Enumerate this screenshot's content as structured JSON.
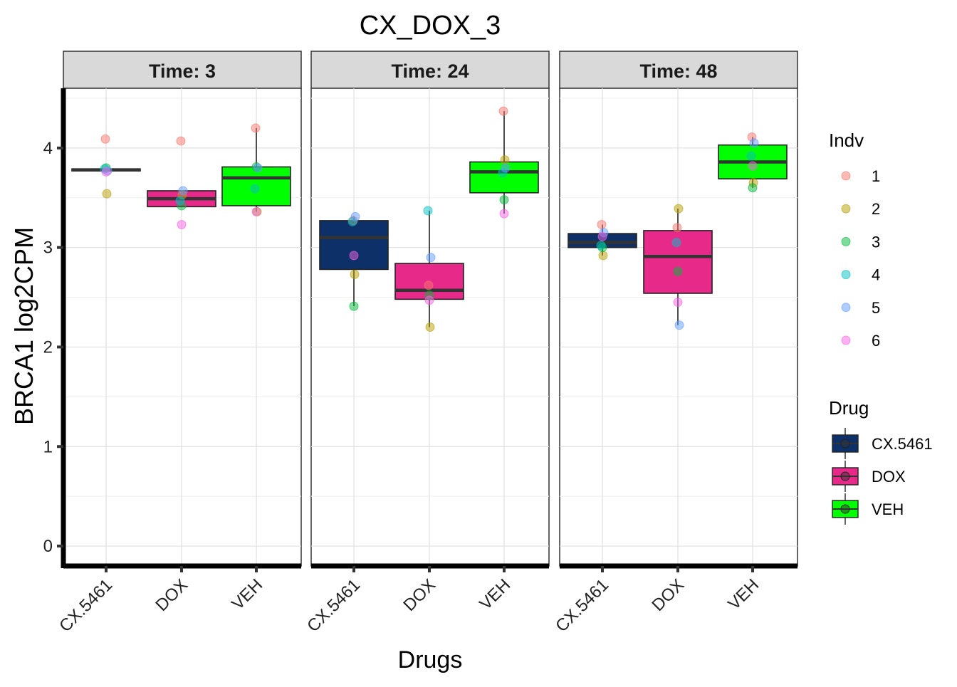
{
  "chart_data": {
    "type": "box",
    "title": "CX_DOX_3",
    "xlabel": "Drugs",
    "ylabel": "BRCA1  log2CPM",
    "ylim": [
      -0.2,
      4.6
    ],
    "yticks": [
      0,
      1,
      2,
      3,
      4
    ],
    "ytick_labels": [
      "0",
      "1",
      "2",
      "3",
      "4"
    ],
    "categories": [
      "CX.5461",
      "DOX",
      "VEH"
    ],
    "grid": true,
    "panels": [
      {
        "label": "Time: 3",
        "boxes": [
          {
            "drug": "CX.5461",
            "q1": 3.77,
            "median": 3.78,
            "q3": 3.79,
            "whisker_low": 3.77,
            "whisker_high": 3.79
          },
          {
            "drug": "DOX",
            "q1": 3.41,
            "median": 3.49,
            "q3": 3.57,
            "whisker_low": 3.41,
            "whisker_high": 3.57
          },
          {
            "drug": "VEH",
            "q1": 3.42,
            "median": 3.7,
            "q3": 3.81,
            "whisker_low": 3.36,
            "whisker_high": 4.2
          }
        ],
        "points": [
          {
            "drug": "CX.5461",
            "indv": "1",
            "y": 4.09
          },
          {
            "drug": "CX.5461",
            "indv": "2",
            "y": 3.54
          },
          {
            "drug": "CX.5461",
            "indv": "3",
            "y": 3.8
          },
          {
            "drug": "CX.5461",
            "indv": "4",
            "y": 3.79
          },
          {
            "drug": "CX.5461",
            "indv": "5",
            "y": 3.77
          },
          {
            "drug": "CX.5461",
            "indv": "6",
            "y": 3.76
          },
          {
            "drug": "DOX",
            "indv": "1",
            "y": 4.07
          },
          {
            "drug": "DOX",
            "indv": "2",
            "y": 3.53
          },
          {
            "drug": "DOX",
            "indv": "3",
            "y": 3.42
          },
          {
            "drug": "DOX",
            "indv": "4",
            "y": 3.47
          },
          {
            "drug": "DOX",
            "indv": "5",
            "y": 3.57
          },
          {
            "drug": "DOX",
            "indv": "6",
            "y": 3.23
          },
          {
            "drug": "VEH",
            "indv": "1",
            "y": 4.2
          },
          {
            "drug": "VEH",
            "indv": "2",
            "y": 3.36
          },
          {
            "drug": "VEH",
            "indv": "3",
            "y": 3.81
          },
          {
            "drug": "VEH",
            "indv": "4",
            "y": 3.59
          },
          {
            "drug": "VEH",
            "indv": "5",
            "y": 3.8
          },
          {
            "drug": "VEH",
            "indv": "6",
            "y": 3.36
          }
        ]
      },
      {
        "label": "Time: 24",
        "boxes": [
          {
            "drug": "CX.5461",
            "q1": 2.78,
            "median": 3.1,
            "q3": 3.27,
            "whisker_low": 2.41,
            "whisker_high": 3.31
          },
          {
            "drug": "DOX",
            "q1": 2.48,
            "median": 2.57,
            "q3": 2.84,
            "whisker_low": 2.2,
            "whisker_high": 3.37
          },
          {
            "drug": "VEH",
            "q1": 3.55,
            "median": 3.76,
            "q3": 3.86,
            "whisker_low": 3.34,
            "whisker_high": 4.37
          }
        ],
        "points": [
          {
            "drug": "CX.5461",
            "indv": "1",
            "y": 3.27
          },
          {
            "drug": "CX.5461",
            "indv": "2",
            "y": 2.73
          },
          {
            "drug": "CX.5461",
            "indv": "3",
            "y": 2.41
          },
          {
            "drug": "CX.5461",
            "indv": "4",
            "y": 3.26
          },
          {
            "drug": "CX.5461",
            "indv": "5",
            "y": 3.31
          },
          {
            "drug": "CX.5461",
            "indv": "6",
            "y": 2.92
          },
          {
            "drug": "DOX",
            "indv": "1",
            "y": 2.62
          },
          {
            "drug": "DOX",
            "indv": "2",
            "y": 2.2
          },
          {
            "drug": "DOX",
            "indv": "3",
            "y": 2.52
          },
          {
            "drug": "DOX",
            "indv": "4",
            "y": 3.37
          },
          {
            "drug": "DOX",
            "indv": "5",
            "y": 2.9
          },
          {
            "drug": "DOX",
            "indv": "6",
            "y": 2.47
          },
          {
            "drug": "VEH",
            "indv": "1",
            "y": 4.37
          },
          {
            "drug": "VEH",
            "indv": "2",
            "y": 3.88
          },
          {
            "drug": "VEH",
            "indv": "3",
            "y": 3.48
          },
          {
            "drug": "VEH",
            "indv": "4",
            "y": 3.75
          },
          {
            "drug": "VEH",
            "indv": "5",
            "y": 3.8
          },
          {
            "drug": "VEH",
            "indv": "6",
            "y": 3.34
          }
        ]
      },
      {
        "label": "Time: 48",
        "boxes": [
          {
            "drug": "CX.5461",
            "q1": 3.0,
            "median": 3.05,
            "q3": 3.14,
            "whisker_low": 2.92,
            "whisker_high": 3.23
          },
          {
            "drug": "DOX",
            "q1": 2.54,
            "median": 2.91,
            "q3": 3.17,
            "whisker_low": 2.22,
            "whisker_high": 3.39
          },
          {
            "drug": "VEH",
            "q1": 3.69,
            "median": 3.86,
            "q3": 4.03,
            "whisker_low": 3.6,
            "whisker_high": 4.11
          }
        ],
        "points": [
          {
            "drug": "CX.5461",
            "indv": "1",
            "y": 3.23
          },
          {
            "drug": "CX.5461",
            "indv": "2",
            "y": 2.92
          },
          {
            "drug": "CX.5461",
            "indv": "3",
            "y": 3.0
          },
          {
            "drug": "CX.5461",
            "indv": "4",
            "y": 3.02
          },
          {
            "drug": "CX.5461",
            "indv": "5",
            "y": 3.15
          },
          {
            "drug": "CX.5461",
            "indv": "6",
            "y": 3.11
          },
          {
            "drug": "DOX",
            "indv": "1",
            "y": 3.2
          },
          {
            "drug": "DOX",
            "indv": "2",
            "y": 3.39
          },
          {
            "drug": "DOX",
            "indv": "3",
            "y": 2.76
          },
          {
            "drug": "DOX",
            "indv": "4",
            "y": 3.05
          },
          {
            "drug": "DOX",
            "indv": "5",
            "y": 2.22
          },
          {
            "drug": "DOX",
            "indv": "6",
            "y": 2.45
          },
          {
            "drug": "VEH",
            "indv": "1",
            "y": 4.11
          },
          {
            "drug": "VEH",
            "indv": "2",
            "y": 3.65
          },
          {
            "drug": "VEH",
            "indv": "3",
            "y": 3.6
          },
          {
            "drug": "VEH",
            "indv": "4",
            "y": 3.92
          },
          {
            "drug": "VEH",
            "indv": "5",
            "y": 4.05
          },
          {
            "drug": "VEH",
            "indv": "6",
            "y": 3.82
          }
        ]
      }
    ],
    "legends": [
      {
        "title": "Indv",
        "items": [
          {
            "label": "1",
            "color": "#F8766D"
          },
          {
            "label": "2",
            "color": "#B79F00"
          },
          {
            "label": "3",
            "color": "#00BA38"
          },
          {
            "label": "4",
            "color": "#00BFC4"
          },
          {
            "label": "5",
            "color": "#619CFF"
          },
          {
            "label": "6",
            "color": "#F564E3"
          }
        ]
      },
      {
        "title": "Drug",
        "items": [
          {
            "label": "CX.5461",
            "color": "#0D3069"
          },
          {
            "label": "DOX",
            "color": "#E7298A"
          },
          {
            "label": "VEH",
            "color": "#00FF00"
          }
        ]
      }
    ],
    "drug_colors": {
      "CX.5461": "#0D3069",
      "DOX": "#E7298A",
      "VEH": "#00FF00"
    },
    "indv_colors": {
      "1": "#F8766D",
      "2": "#B79F00",
      "3": "#00BA38",
      "4": "#00BFC4",
      "5": "#619CFF",
      "6": "#F564E3"
    }
  }
}
